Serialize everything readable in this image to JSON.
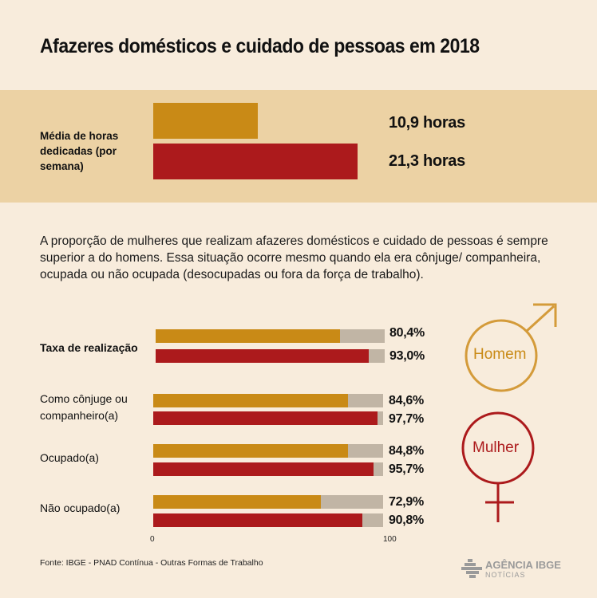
{
  "title": "Afazeres domésticos e cuidado de pessoas em 2018",
  "hours": {
    "label": "Média de horas dedicadas (por semana)",
    "men_label": "10,9 horas",
    "women_label": "21,3 horas"
  },
  "description": "A proporção de mulheres que realizam afazeres domésticos e cuidado de pessoas é sempre superior a do homens. Essa situação ocorre mesmo quando ela era cônjuge/ companheira, ocupada ou não ocupada (desocupadas ou fora da força de trabalho).",
  "legend": {
    "men": "Homem",
    "women": "Mulher"
  },
  "axis": {
    "min_label": "0",
    "max_label": "100"
  },
  "source": "Fonte: IBGE - PNAD Contínua - Outras Formas de Trabalho",
  "logo": {
    "main": "AGÊNCIA IBGE",
    "sub": "NOTÍCIAS"
  },
  "colors": {
    "men": "#c98a16",
    "women": "#ac1a1c",
    "track": "#c1b5a5",
    "band": "#ecd2a4",
    "background": "#f8ecdc"
  },
  "chart_data": [
    {
      "type": "bar",
      "title": "Média de horas dedicadas (por semana)",
      "categories": [
        "Homem",
        "Mulher"
      ],
      "values": [
        10.9,
        21.3
      ],
      "unit": "horas"
    },
    {
      "type": "bar",
      "orientation": "horizontal",
      "categories": [
        "Taxa de realização",
        "Como cônjuge ou companheiro(a)",
        "Ocupado(a)",
        "Não ocupado(a)"
      ],
      "series": [
        {
          "name": "Homem",
          "values": [
            80.4,
            84.6,
            84.8,
            72.9
          ],
          "labels": [
            "80,4%",
            "84,6%",
            "84,8%",
            "72,9%"
          ]
        },
        {
          "name": "Mulher",
          "values": [
            93.0,
            97.7,
            95.7,
            90.8
          ],
          "labels": [
            "93,0%",
            "97,7%",
            "95,7%",
            "90,8%"
          ]
        }
      ],
      "xlim": [
        0,
        100
      ]
    }
  ]
}
